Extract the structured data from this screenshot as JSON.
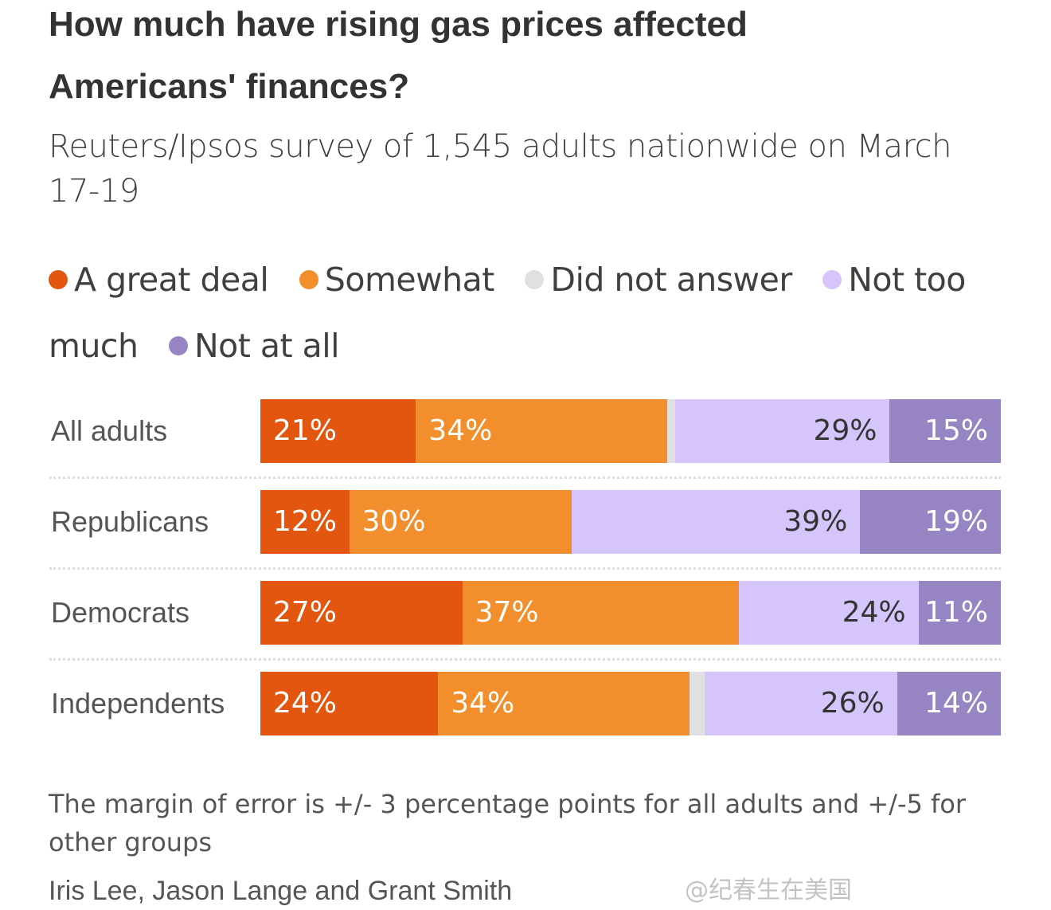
{
  "chart_data": {
    "type": "bar",
    "orientation": "horizontal-stacked-100",
    "title": "How much have rising gas prices affected Americans' finances?",
    "subtitle": "Reuters/Ipsos survey of 1,545 adults nationwide on March 17-19",
    "categories": [
      "All adults",
      "Republicans",
      "Democrats",
      "Independents"
    ],
    "series": [
      {
        "name": "A great deal",
        "color": "#e3560f",
        "values": [
          21,
          12,
          27,
          24
        ],
        "show_labels": true
      },
      {
        "name": "Somewhat",
        "color": "#f28e2b",
        "values": [
          34,
          30,
          37,
          34
        ],
        "show_labels": true
      },
      {
        "name": "Did not answer",
        "color": "#e0e0e0",
        "values": [
          1,
          0,
          0,
          2
        ],
        "show_labels": false
      },
      {
        "name": "Not too much",
        "color": "#d6c5fa",
        "values": [
          29,
          39,
          24,
          26
        ],
        "show_labels": true
      },
      {
        "name": "Not at all",
        "color": "#9784c2",
        "values": [
          15,
          19,
          11,
          14
        ],
        "show_labels": true
      }
    ],
    "unit": "%",
    "legend": "top",
    "grid": false
  },
  "note": "The margin of error is +/- 3 percentage points for all adults and +/-5 for other groups",
  "credit": "Iris Lee, Jason Lange and Grant Smith",
  "watermark": "@纪春生在美国"
}
